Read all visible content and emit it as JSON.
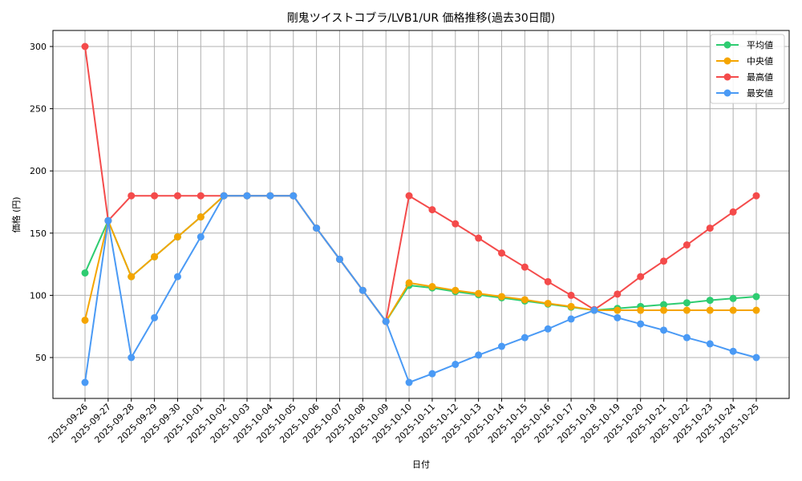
{
  "chart_data": {
    "type": "line",
    "title": "剛鬼ツイストコブラ/LVB1/UR 価格推移(過去30日間)",
    "xlabel": "日付",
    "ylabel": "価格 (円)",
    "ylim": [
      15,
      312
    ],
    "yticks": [
      50,
      100,
      150,
      200,
      250,
      300
    ],
    "grid": true,
    "legend_position": "upper right",
    "categories": [
      "2025-09-26",
      "2025-09-27",
      "2025-09-28",
      "2025-09-29",
      "2025-09-30",
      "2025-10-01",
      "2025-10-02",
      "2025-10-03",
      "2025-10-04",
      "2025-10-05",
      "2025-10-06",
      "2025-10-07",
      "2025-10-08",
      "2025-10-09",
      "2025-10-10",
      "2025-10-11",
      "2025-10-12",
      "2025-10-13",
      "2025-10-14",
      "2025-10-15",
      "2025-10-16",
      "2025-10-17",
      "2025-10-18",
      "2025-10-19",
      "2025-10-20",
      "2025-10-21",
      "2025-10-22",
      "2025-10-23",
      "2025-10-24",
      "2025-10-25"
    ],
    "series": [
      {
        "name": "平均値",
        "color": "#2ecc71",
        "values": [
          118,
          160,
          115,
          131,
          147,
          163,
          180,
          180,
          180,
          180,
          154,
          129,
          104,
          79,
          108,
          106,
          103,
          100.5,
          98,
          95.5,
          93,
          90.5,
          88,
          89.5,
          91,
          92.5,
          94,
          96,
          97.5,
          99
        ]
      },
      {
        "name": "中央値",
        "color": "#f5a500",
        "values": [
          80,
          160,
          115,
          131,
          147,
          163,
          180,
          180,
          180,
          180,
          154,
          129,
          104,
          79,
          110,
          107,
          104,
          101.5,
          99,
          96.5,
          93.5,
          91,
          88,
          88,
          88,
          88,
          88,
          88,
          88,
          88
        ]
      },
      {
        "name": "最高値",
        "color": "#f44b4b",
        "values": [
          300,
          160,
          180,
          180,
          180,
          180,
          180,
          180,
          180,
          180,
          154,
          129,
          104,
          79,
          180,
          168.8,
          157.5,
          146,
          134,
          122.7,
          111,
          100,
          88.5,
          101,
          115,
          127.5,
          140.5,
          154,
          167,
          180
        ]
      },
      {
        "name": "最安値",
        "color": "#4a9af5",
        "values": [
          30,
          160,
          50,
          82,
          115,
          147,
          180,
          180,
          180,
          180,
          154,
          129,
          104,
          79,
          30,
          37,
          44.5,
          52,
          59,
          66,
          73,
          81,
          88,
          82,
          77,
          72,
          66,
          61,
          55,
          50
        ]
      }
    ]
  }
}
